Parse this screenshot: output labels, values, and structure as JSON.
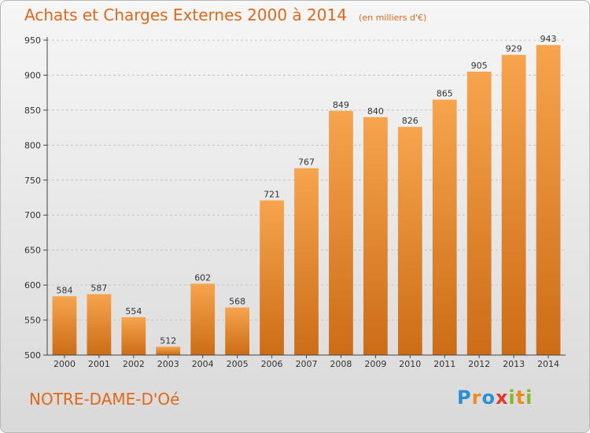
{
  "chart_data": {
    "type": "bar",
    "title": "Achats et Charges Externes 2000 à 2014",
    "subtitle": "(en milliers d'€)",
    "categories": [
      "2000",
      "2001",
      "2002",
      "2003",
      "2004",
      "2005",
      "2006",
      "2007",
      "2008",
      "2009",
      "2010",
      "2011",
      "2012",
      "2013",
      "2014"
    ],
    "values": [
      584,
      587,
      554,
      512,
      602,
      568,
      721,
      767,
      849,
      840,
      826,
      865,
      905,
      929,
      943
    ],
    "ylim": [
      500,
      950
    ],
    "yticks": [
      500,
      550,
      600,
      650,
      700,
      750,
      800,
      850,
      900,
      950
    ],
    "grid": true,
    "bar_color_top": "#f7a44e",
    "bar_color_bottom": "#cc6c16",
    "xlabel": "",
    "ylabel": ""
  },
  "locality": "NOTRE-DAME-D'Oé",
  "logo": {
    "letters": [
      "P",
      "r",
      "o",
      "x",
      "i",
      "t",
      "i"
    ],
    "colors": [
      "#2a8fd8",
      "#f08a1c",
      "#2a8fd8",
      "#e8352b",
      "#84b82a",
      "#f08a1c",
      "#84b82a"
    ]
  }
}
